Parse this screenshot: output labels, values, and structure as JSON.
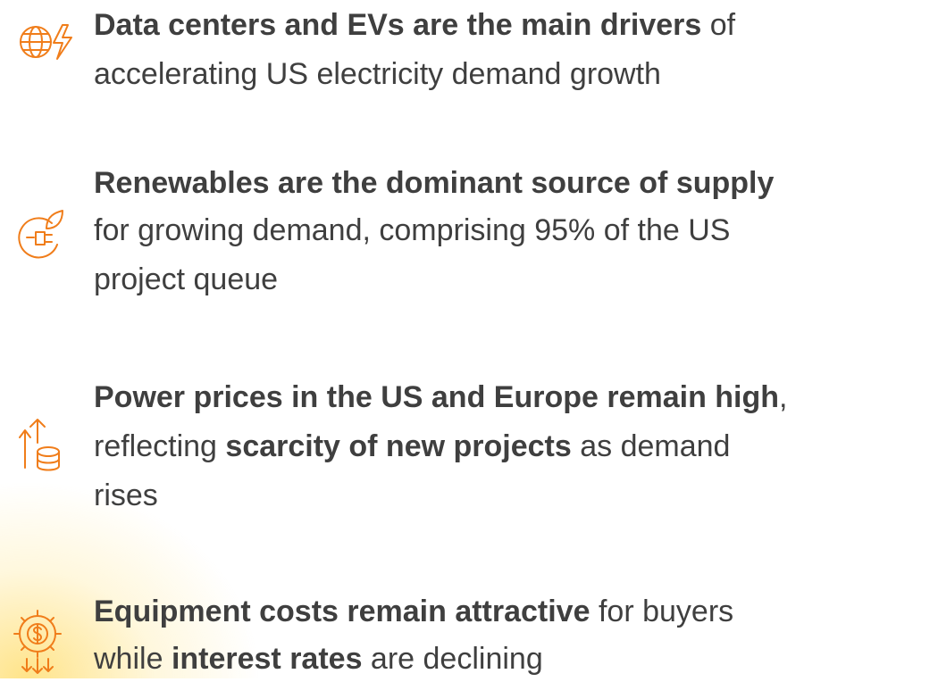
{
  "items": [
    {
      "lines": [
        [
          {
            "text": "Data centers and EVs are the main drivers",
            "bold": true
          },
          {
            "text": " of",
            "bold": false
          }
        ],
        [
          {
            "text": "accelerating US electricity demand growth",
            "bold": false
          }
        ]
      ]
    },
    {
      "lines": [
        [
          {
            "text": "Renewables are the dominant source of supply",
            "bold": true
          }
        ],
        [
          {
            "text": "for growing demand, comprising 95% of the US",
            "bold": false
          }
        ],
        [
          {
            "text": "project queue",
            "bold": false
          }
        ]
      ]
    },
    {
      "lines": [
        [
          {
            "text": "Power prices in the US and Europe remain high",
            "bold": true
          },
          {
            "text": ",",
            "bold": false
          }
        ],
        [
          {
            "text": "reflecting ",
            "bold": false
          },
          {
            "text": "scarcity of new projects",
            "bold": true
          },
          {
            "text": " as demand",
            "bold": false
          }
        ],
        [
          {
            "text": "rises",
            "bold": false
          }
        ]
      ]
    },
    {
      "lines": [
        [
          {
            "text": "Equipment costs remain attractive",
            "bold": true
          },
          {
            "text": " for buyers",
            "bold": false
          }
        ],
        [
          {
            "text": "while ",
            "bold": false
          },
          {
            "text": "interest rates",
            "bold": true
          },
          {
            "text": " are declining",
            "bold": false
          }
        ]
      ]
    }
  ]
}
